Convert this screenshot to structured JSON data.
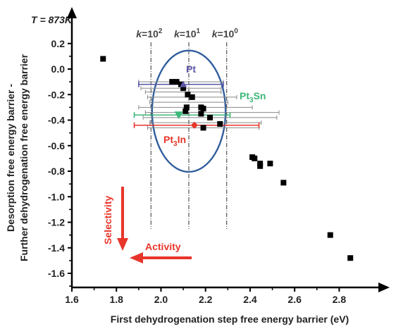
{
  "chart_data": {
    "type": "scatter",
    "title": "T = 873K",
    "xlabel": "First dehydrogenation step free energy barrier (eV)",
    "ylabel_line1": "Desorption free energy barrier -",
    "ylabel_line2": "Further dehydrogenation free energy barrier",
    "xlim": [
      1.6,
      2.95
    ],
    "ylim": [
      -1.7,
      0.25
    ],
    "x_ticks": [
      "1.6",
      "1.8",
      "2.0",
      "2.2",
      "2.4",
      "2.6",
      "2.8"
    ],
    "y_ticks": [
      "0.2",
      "0.0",
      "-0.2",
      "-0.4",
      "-0.6",
      "-0.8",
      "-1.0",
      "-1.2",
      "-1.4",
      "-1.6"
    ],
    "x_tick_values": [
      1.6,
      1.8,
      2.0,
      2.2,
      2.4,
      2.6,
      2.8
    ],
    "y_tick_values": [
      0.2,
      0.0,
      -0.2,
      -0.4,
      -0.6,
      -0.8,
      -1.0,
      -1.2,
      -1.4,
      -1.6
    ],
    "series": [
      {
        "marker": "square",
        "color": "#000000",
        "points": [
          {
            "x": 1.74,
            "y": 0.08
          },
          {
            "x": 2.05,
            "y": -0.1
          },
          {
            "x": 2.07,
            "y": -0.1
          },
          {
            "x": 2.09,
            "y": -0.12
          },
          {
            "x": 2.1,
            "y": -0.15
          },
          {
            "x": 2.12,
            "y": -0.2
          },
          {
            "x": 2.14,
            "y": -0.22
          },
          {
            "x": 2.115,
            "y": -0.3
          },
          {
            "x": 2.11,
            "y": -0.33
          },
          {
            "x": 2.18,
            "y": -0.3
          },
          {
            "x": 2.19,
            "y": -0.31
          },
          {
            "x": 2.18,
            "y": -0.35
          },
          {
            "x": 2.22,
            "y": -0.38
          },
          {
            "x": 2.265,
            "y": -0.43
          },
          {
            "x": 2.19,
            "y": -0.46
          },
          {
            "x": 2.41,
            "y": -0.69
          },
          {
            "x": 2.42,
            "y": -0.7
          },
          {
            "x": 2.445,
            "y": -0.74
          },
          {
            "x": 2.445,
            "y": -0.76
          },
          {
            "x": 2.49,
            "y": -0.74
          },
          {
            "x": 2.55,
            "y": -0.89
          },
          {
            "x": 2.76,
            "y": -1.3
          },
          {
            "x": 2.85,
            "y": -1.48
          }
        ]
      },
      {
        "name": "Pt",
        "marker": "triangle-up",
        "color": "#5b57a6",
        "points": [
          {
            "x": 2.1,
            "y": -0.12,
            "xmin": 1.9,
            "xmax": 2.28
          }
        ]
      },
      {
        "name": "Pt3Sn",
        "marker": "triangle-down",
        "color": "#3cb878",
        "points": [
          {
            "x": 2.08,
            "y": -0.36,
            "xmin": 1.88,
            "xmax": 2.31
          }
        ]
      },
      {
        "name": "Pt3In",
        "marker": "diamond",
        "color": "#e8352b",
        "points": [
          {
            "x": 2.15,
            "y": -0.44,
            "xmin": 1.88,
            "xmax": 2.44
          }
        ]
      }
    ],
    "gray_errorbars": [
      {
        "y": -0.1,
        "xmin": 1.9,
        "xmax": 2.28
      },
      {
        "y": -0.15,
        "xmin": 1.91,
        "xmax": 2.27
      },
      {
        "y": -0.18,
        "xmin": 1.93,
        "xmax": 2.27
      },
      {
        "y": -0.22,
        "xmin": 1.94,
        "xmax": 2.34
      },
      {
        "y": -0.26,
        "xmin": 1.95,
        "xmax": 2.3
      },
      {
        "y": -0.3,
        "xmin": 1.9,
        "xmax": 2.41
      },
      {
        "y": -0.34,
        "xmin": 1.93,
        "xmax": 2.53
      },
      {
        "y": -0.38,
        "xmin": 1.92,
        "xmax": 2.52
      },
      {
        "y": -0.42,
        "xmin": 1.95,
        "xmax": 2.45
      },
      {
        "y": -0.46,
        "xmin": 1.94,
        "xmax": 2.44
      }
    ],
    "vlines": [
      {
        "x": 1.955,
        "label_base": "k",
        "label_eq": "=10",
        "label_exp": "2"
      },
      {
        "x": 2.125,
        "label_base": "k",
        "label_eq": "=10",
        "label_exp": "1"
      },
      {
        "x": 2.295,
        "label_base": "k",
        "label_eq": "=10",
        "label_exp": "0"
      }
    ],
    "ellipse": {
      "cx": 2.125,
      "cy": -0.33,
      "rx": 0.165,
      "ry": 0.475,
      "color": "#2f5d9c"
    },
    "annotations": {
      "pt": {
        "text": "Pt",
        "color": "#5b57a6"
      },
      "pt3sn": {
        "base": "Pt",
        "sub": "3",
        "rest": "Sn",
        "color": "#3cb878"
      },
      "pt3in": {
        "base": "Pt",
        "sub": "3",
        "rest": "In",
        "color": "#e8352b"
      },
      "selectivity": {
        "text": "Selectivity",
        "color": "#e8352b"
      },
      "activity": {
        "text": "Activity",
        "color": "#e8352b"
      }
    }
  }
}
